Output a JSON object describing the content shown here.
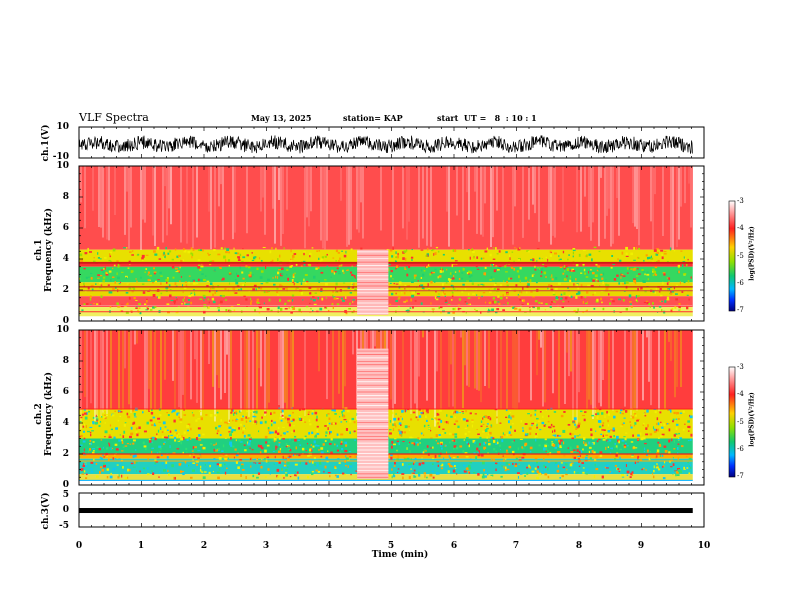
{
  "header": {
    "title": "VLF Spectra",
    "date": "May 13, 2025",
    "station": "station= KAP",
    "start": "start  UT =   8  : 10 : 1"
  },
  "chart_data": [
    {
      "type": "line",
      "name": "ch1-waveform",
      "ylabel": "ch.1(V)",
      "ylim": [
        -10,
        10
      ],
      "yticks": [
        "10",
        "-10"
      ],
      "xlim": [
        0,
        10
      ]
    },
    {
      "type": "heatmap",
      "name": "ch1-spectrogram",
      "ylabel": "ch.1\nFrequency  (kHz)",
      "ylabel_lines": [
        "ch.1",
        "Frequency  (kHz)"
      ],
      "ylim": [
        0,
        10
      ],
      "yticks": [
        "10",
        "8",
        "6",
        "4",
        "2",
        "0"
      ],
      "xlim": [
        0,
        9.82
      ],
      "colorbar": {
        "label": "log(PSD)(V²/Hz)",
        "range": [
          -7,
          -3
        ],
        "ticks": [
          "-3",
          "-4",
          "-5",
          "-6",
          "-7"
        ]
      }
    },
    {
      "type": "heatmap",
      "name": "ch2-spectrogram",
      "ylabel_lines": [
        "ch.2",
        "Frequency  (kHz)"
      ],
      "ylim": [
        0,
        10
      ],
      "yticks": [
        "10",
        "8",
        "6",
        "4",
        "2",
        "0"
      ],
      "xlim": [
        0,
        9.82
      ],
      "colorbar": {
        "label": "log(PSD)(V²/Hz)",
        "range": [
          -7,
          -3
        ],
        "ticks": [
          "-3",
          "-4",
          "-5",
          "-6",
          "-7"
        ]
      }
    },
    {
      "type": "line",
      "name": "ch3-trace",
      "ylabel": "ch.3(V)",
      "ylim": [
        -5,
        5
      ],
      "yticks": [
        "5",
        "0",
        "-5"
      ],
      "value_level": -0.3,
      "xlim": [
        0,
        9.82
      ]
    }
  ],
  "xaxis": {
    "label": "Time  (min)",
    "ticks": [
      "0",
      "1",
      "2",
      "3",
      "4",
      "5",
      "6",
      "7",
      "8",
      "9",
      "10"
    ]
  },
  "colors": {
    "background": "#ffffff",
    "high": "#ff2a2a",
    "mid": "#f0f000",
    "low": "#1fd070",
    "veryLow": "#00c8ff",
    "trace": "#000000"
  }
}
